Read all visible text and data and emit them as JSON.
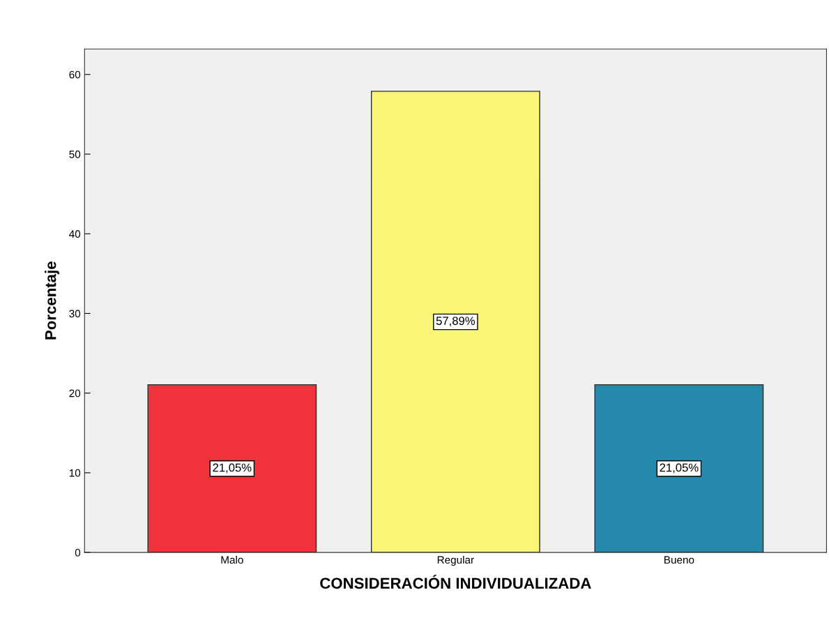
{
  "chart_data": {
    "type": "bar",
    "xlabel": "CONSIDERACIÓN INDIVIDUALIZADA",
    "ylabel": "Porcentaje",
    "categories": [
      "Malo",
      "Regular",
      "Bueno"
    ],
    "values": [
      21.05,
      57.89,
      21.05
    ],
    "colors": [
      "#f0323a",
      "#f9f677",
      "#2489ab"
    ],
    "value_labels": [
      "21,05%",
      "57,89%",
      "21,05%"
    ],
    "ylim": [
      0,
      63.2
    ],
    "yticks": [
      0,
      10,
      20,
      30,
      40,
      50,
      60
    ],
    "grid": false,
    "legend": false
  }
}
